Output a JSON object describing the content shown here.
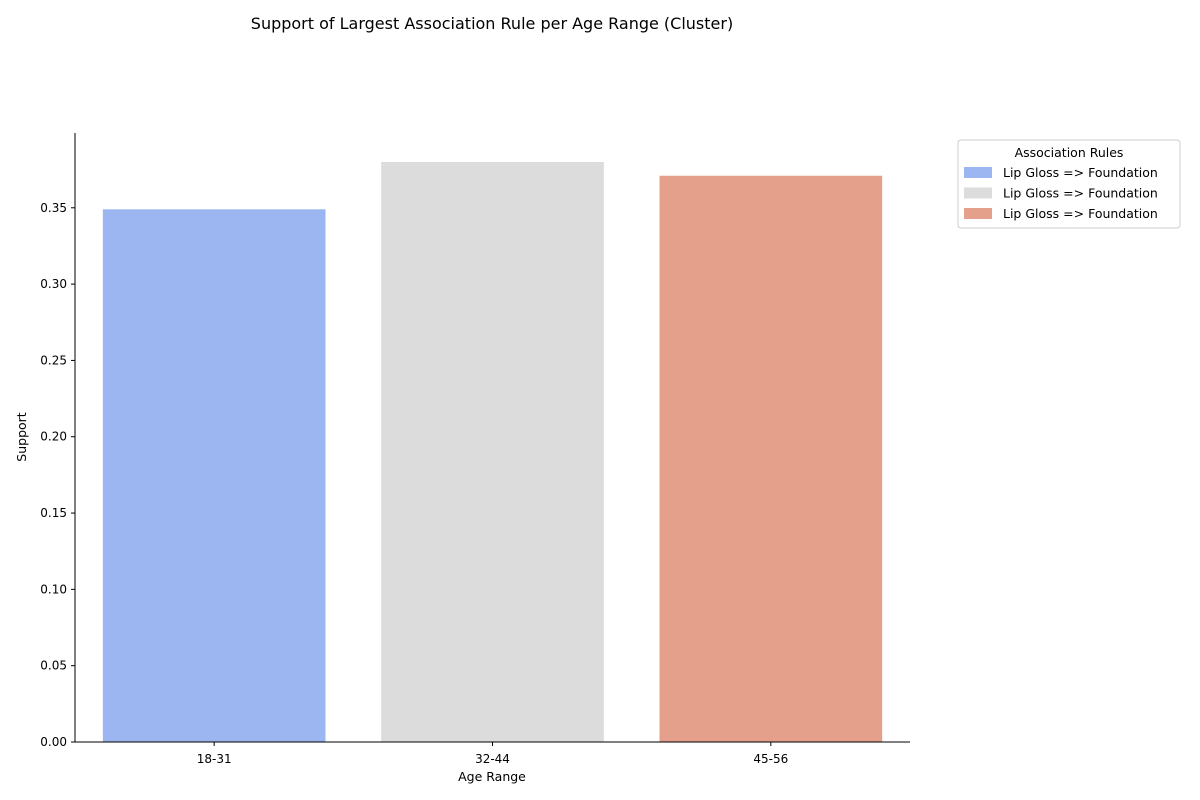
{
  "chart_data": {
    "type": "bar",
    "title": "Support of Largest Association Rule per Age Range (Cluster)",
    "xlabel": "Age Range",
    "ylabel": "Support",
    "categories": [
      "18-31",
      "32-44",
      "45-56"
    ],
    "values": [
      0.349,
      0.38,
      0.371
    ],
    "colors": [
      "#9bb6f0",
      "#dcdcdc",
      "#e4a08a"
    ],
    "ylim": [
      0,
      0.399
    ],
    "yticks": [
      "0.00",
      "0.05",
      "0.10",
      "0.15",
      "0.20",
      "0.25",
      "0.30",
      "0.35"
    ],
    "legend": {
      "title": "Association Rules",
      "placement": "outside-top-right",
      "entries": [
        "Lip Gloss => Foundation",
        "Lip Gloss => Foundation",
        "Lip Gloss => Foundation"
      ]
    },
    "grid": false
  }
}
